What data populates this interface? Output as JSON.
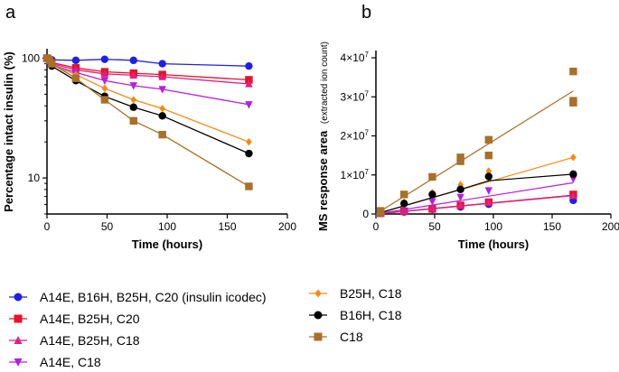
{
  "chart_data": [
    {
      "panel": "a",
      "type": "line",
      "yscale": "log",
      "xlabel": "Time (hours)",
      "ylabel": "Percentage intact insulin (%)",
      "xlim": [
        0,
        200
      ],
      "ylim": [
        5,
        120
      ],
      "xticks": [
        "0",
        "50",
        "100",
        "150",
        "200"
      ],
      "yticks": [
        "10",
        "100"
      ],
      "series": [
        {
          "id": "s1",
          "name": "A14E, B16H, B25H, C20 (insulin icodec)",
          "color": "#1f1fe8",
          "marker": "circle",
          "x": [
            0,
            2,
            4,
            24,
            48,
            72,
            96,
            168
          ],
          "y": [
            100,
            99,
            97,
            96,
            98,
            96,
            90,
            86
          ]
        },
        {
          "id": "s2",
          "name": "A14E, B25H, C20",
          "color": "#e8102a",
          "marker": "square",
          "x": [
            0,
            2,
            4,
            24,
            48,
            72,
            96,
            168
          ],
          "y": [
            100,
            96,
            92,
            83,
            77,
            75,
            73,
            66
          ]
        },
        {
          "id": "s3",
          "name": "A14E, B25H, C18",
          "color": "#e0217b",
          "marker": "triangle-up",
          "x": [
            0,
            2,
            4,
            24,
            48,
            72,
            96,
            168
          ],
          "y": [
            100,
            95,
            90,
            80,
            74,
            72,
            70,
            61
          ]
        },
        {
          "id": "s4",
          "name": "A14E, C18",
          "color": "#b51fe0",
          "marker": "triangle-down",
          "x": [
            0,
            2,
            4,
            24,
            48,
            72,
            96,
            168
          ],
          "y": [
            100,
            94,
            88,
            76,
            65,
            59,
            55,
            41
          ]
        },
        {
          "id": "s5",
          "name": "B25H, C18",
          "color": "#f58a12",
          "marker": "diamond",
          "x": [
            0,
            2,
            4,
            24,
            48,
            72,
            96,
            168
          ],
          "y": [
            100,
            95,
            88,
            73,
            56,
            45,
            38,
            20
          ]
        },
        {
          "id": "s6",
          "name": "B16H, C18",
          "color": "#000000",
          "marker": "circle",
          "x": [
            0,
            2,
            4,
            24,
            48,
            72,
            96,
            168
          ],
          "y": [
            100,
            96,
            86,
            65,
            48,
            39,
            33,
            16
          ]
        },
        {
          "id": "s7",
          "name": "C18",
          "color": "#a8702a",
          "marker": "square",
          "x": [
            0,
            2,
            4,
            24,
            48,
            72,
            96,
            168
          ],
          "y": [
            100,
            97,
            90,
            68,
            45,
            30,
            23,
            8.5
          ]
        }
      ]
    },
    {
      "panel": "b",
      "type": "scatter",
      "xlabel": "Time (hours)",
      "ylabel": "MS response area",
      "ylabel_sub": "(extracted ion count)",
      "xlim": [
        0,
        200
      ],
      "ylim": [
        0,
        40000000
      ],
      "xticks": [
        "0",
        "50",
        "100",
        "150",
        "200"
      ],
      "yticks": [
        {
          "mantissa": "0",
          "exp": ""
        },
        {
          "mantissa": "1×10",
          "exp": "7"
        },
        {
          "mantissa": "2×10",
          "exp": "7"
        },
        {
          "mantissa": "3×10",
          "exp": "7"
        },
        {
          "mantissa": "4×10",
          "exp": "7"
        }
      ],
      "series": [
        {
          "id": "s1",
          "color": "#1f1fe8",
          "marker": "circle",
          "x": [
            4,
            24,
            48,
            72,
            96,
            168
          ],
          "y": [
            200000,
            500000,
            1200000,
            1800000,
            2500000,
            3500000
          ],
          "fit": [
            [
              0,
              0
            ],
            [
              168,
              4800000
            ]
          ]
        },
        {
          "id": "s2",
          "color": "#e8102a",
          "marker": "square",
          "x": [
            4,
            24,
            48,
            72,
            96,
            168
          ],
          "y": [
            200000,
            700000,
            1300000,
            2200000,
            3000000,
            5000000
          ],
          "fit": [
            [
              0,
              0
            ],
            [
              168,
              4800000
            ]
          ]
        },
        {
          "id": "s3",
          "color": "#e0217b",
          "marker": "triangle-up",
          "x": [
            4,
            24,
            48,
            72,
            96,
            168
          ],
          "y": [
            200000,
            800000,
            1500000,
            2200000,
            3000000,
            4700000
          ],
          "fit": [
            [
              0,
              0
            ],
            [
              168,
              4700000
            ]
          ]
        },
        {
          "id": "s4",
          "color": "#b51fe0",
          "marker": "triangle-down",
          "x": [
            4,
            24,
            48,
            72,
            96,
            168
          ],
          "y": [
            400000,
            2000000,
            3200000,
            4300000,
            6000000,
            9000000
          ],
          "fit": [
            [
              0,
              0
            ],
            [
              168,
              8000000
            ]
          ]
        },
        {
          "id": "s5",
          "color": "#f58a12",
          "marker": "diamond",
          "x": [
            4,
            24,
            48,
            72,
            96,
            168
          ],
          "y": [
            600000,
            3000000,
            5500000,
            7500000,
            11000000,
            14500000
          ],
          "fit": [
            [
              0,
              0
            ],
            [
              168,
              14500000
            ]
          ]
        },
        {
          "id": "s6",
          "color": "#000000",
          "marker": "circle",
          "x": [
            4,
            24,
            48,
            72,
            96,
            168
          ],
          "y": [
            500000,
            2700000,
            5000000,
            6300000,
            9600000,
            10200000
          ],
          "fit": [
            [
              0,
              0
            ],
            [
              72,
              6300000
            ],
            [
              96,
              8500000
            ],
            [
              168,
              10200000
            ]
          ]
        },
        {
          "id": "s7",
          "color": "#a8702a",
          "marker": "square",
          "x": [
            4,
            4,
            24,
            48,
            72,
            72,
            96,
            96,
            168,
            168,
            168
          ],
          "y": [
            800000,
            400000,
            5000000,
            9500000,
            14500000,
            13500000,
            19000000,
            15000000,
            36500000,
            29000000,
            28500000
          ],
          "fit": [
            [
              0,
              0
            ],
            [
              168,
              31500000
            ]
          ]
        }
      ]
    }
  ],
  "panel_labels": {
    "a": "a",
    "b": "b"
  },
  "legend": [
    {
      "series": "s1",
      "label": "A14E, B16H, B25H, C20 (insulin icodec)"
    },
    {
      "series": "s2",
      "label": "A14E, B25H, C20"
    },
    {
      "series": "s3",
      "label": "A14E, B25H, C18"
    },
    {
      "series": "s4",
      "label": "A14E, C18"
    },
    {
      "series": "s5",
      "label": "B25H, C18"
    },
    {
      "series": "s6",
      "label": "B16H, C18"
    },
    {
      "series": "s7",
      "label": "C18"
    }
  ]
}
